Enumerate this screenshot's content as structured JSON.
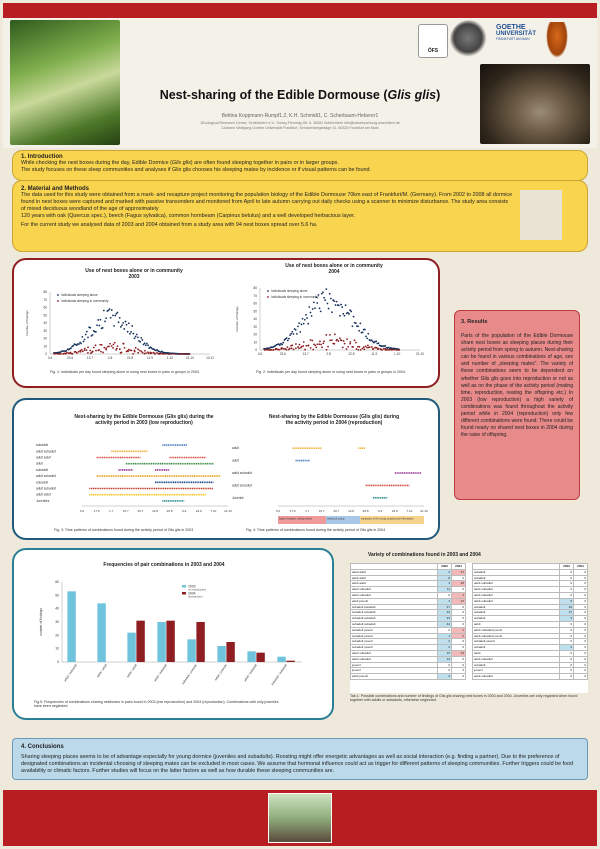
{
  "title": {
    "prefix": "Nest-sharing of the Edible Dormouse (",
    "species": "Glis glis",
    "suffix": ")"
  },
  "authors": "Bettina Koppmann-Rumpf1,2, K.H. Schmidt1, C. Scherbaum-Heberer1",
  "affiliations": [
    "1Ecological Research Center, Schlüchtern e.V., Georg-Flemmig-Str. 5, 36381 Schlüchtern info@oekoforschung-sluechtern.de",
    "2Johann Wolfgang Goethe Universität Frankfurt, Senckenberganlage 31, 60325 Frankfurt am Main"
  ],
  "logos": {
    "ofs": "ÖFS",
    "uni1": "GOETHE",
    "uni2": "UNIVERSITÄT",
    "uni3": "FRANKFURT AM MAIN"
  },
  "introduction": {
    "heading": "1. Introduction",
    "p1a": "While checking the nest boxes during the day, Edible Dormice (",
    "p1i": "Glis glis",
    "p1b": ") are often found sleeping together in pairs or in larger groups.",
    "p2": "The study focuses on these sleep communities  and analyses if Glis glis chooses his sleeping mates by incidence or if visual patterns can be found."
  },
  "methods": {
    "heading": "2. Material and Methods",
    "p1": "The data used for this study were obtained from a mark- and recapture project monitoring the population biology of the Edible Dormouse 70km east of Frankfurt/M. (Germany).  From 2002 to 2008 all dormice found in nest boxes were captured and marked with passive transonders and monitored from April to late autumn carrying out daily  checks using a scanner to minimize  disturbance. The study area consists of mixed deciduous woodland of the age of approximately",
    "p2": " 120 years with oak (Quercus spec.), beech (Fagus sylvatica), common hornbeam (Carpinus betulus) and a well developed herbacious layer.",
    "p3": "For the current study  we analysed data of 2003 and 2004 obtained from a study area with 94 nest boxes spread over 5.6 ha."
  },
  "results": {
    "heading": "3. Results",
    "text": "Parts of the population of the Edible Dormouse share nest boxes as sleeping places during their activity period from spring to autumn. Nest-sharing can be found in various combinations of age, sex and number of „sleeping mates\". The variety of these combinations seem to be dependent on whether Glis glis goes into reproduction or not as well as on the phase of the activity period (mating time, reproduction, rearing the offspring etc.) In 2003 (low reproduction) a high variety of combinations was found throughout the activity period while in 2004 (reproduction) only few different combinations were found.  There could be found nearly no shared nest boxes in 2004 during the raise of offspring."
  },
  "conclusions": {
    "heading": "4. Conclusions",
    "text": "Sharing sleeping places seems to be of advantage especially for young dormice (juveniles and subadults). Roosting might offer energetic advantages as well as social interaction (e.g. finding a partner). Due to the preference of designated combinations an incidental choosing of sleeping mates can be excluded in most cases. We assume that hormonal influence could act as trigger for different patterns of sleeping communities. Further triggers could be food availability or climatic factors. Further studies will focus on the latter factors as well as how durable these sleeping communities are."
  },
  "fig1": {
    "title_a": "Use of nest boxes alone or in community",
    "title_b": "2003",
    "legend": [
      "Individuals sleeping alone",
      "Individuals sleeping in community"
    ],
    "yticks": [
      "80",
      "70",
      "60",
      "50",
      "40",
      "30",
      "20",
      "10",
      "0"
    ],
    "ylabel": "Number of findings",
    "xticks": [
      "3.6",
      "23.6",
      "13.7",
      "2.8",
      "22.8",
      "11.9",
      "1.10",
      "21.10",
      "10.11"
    ],
    "caption": "Fig. 1: Individuals per day found sleeping alone or using nest boxes in pairs or groups in 2003."
  },
  "fig2": {
    "title_a": "Use of nest boxes alone or in community",
    "title_b": "2004",
    "legend": [
      "Individuals sleeping alone",
      "Individuals sleeping in community"
    ],
    "yticks": [
      "80",
      "70",
      "60",
      "50",
      "40",
      "30",
      "20",
      "10",
      "0"
    ],
    "ylabel": "Number of findings",
    "xticks": [
      "3.6",
      "23.6",
      "13.7",
      "2.8",
      "22.8",
      "11.9",
      "1.10",
      "21.10"
    ],
    "caption": "Fig. 2: Individuals per day found sleeping alone or using nest boxes in pairs or groups in 2004."
  },
  "fig3": {
    "title1": "Nest-sharing by the Edible Dormouse (Glis glis) during the",
    "title2": "activity period in 2003 (low reproduction)",
    "labels": [
      "subadult",
      "adult subadult",
      "adult adult",
      "adult",
      "subadult",
      "adult subadult",
      "subadult",
      "adult subadult",
      "adult adult",
      "Juveniles"
    ],
    "xticks": [
      "3.6",
      "17.6",
      "1.7",
      "15.7",
      "29.7",
      "12.8",
      "26.8",
      "9.9",
      "23.9",
      "7.10",
      "21.10"
    ],
    "caption": "Fig. 3: Time patterns of combinations found during the activity period of Glis glis in 2003"
  },
  "fig4": {
    "title1": "Nest-sharing by the Edible Dormouse (Glis glis) during",
    "title2": "the activity period in 2004 (reproduction)",
    "labels": [
      "adult",
      "adult",
      "adult subadult",
      "adult subadult",
      "Juvenile"
    ],
    "xticks": [
      "3.6",
      "17.6",
      "1.7",
      "15.7",
      "29.7",
      "12.8",
      "26.8",
      "9.9",
      "23.9",
      "7.10",
      "21.10"
    ],
    "phases": [
      "begin of season, mating period",
      "rearing of young",
      "separation of the young, preparing for hibernation"
    ],
    "caption": "Fig. 4: Time patterns of combinations found during the activity period of Glis glis in 2004"
  },
  "fig5": {
    "title": "Frequencies of  pair combinations in 2003 and 2004",
    "legend": [
      "2003",
      "2004"
    ],
    "legend_sub": [
      "no reproduction",
      "reproduction"
    ],
    "ylabel": "number of findings",
    "yticks": [
      "60",
      "50",
      "40",
      "30",
      "20",
      "10",
      "0"
    ],
    "categories": [
      "adult / subadult",
      "adult / adult",
      "adult / adult",
      "adult / subadult",
      "subadult / juvenile",
      "adult / juvenile",
      "adult / subadult",
      "subadult / subadult"
    ],
    "caption": "Fig.5: Frequencies of combinations sharing nestboxes in pairs found in 2003 (low reproduction) and 2004 (reproduction). Combinations with only juveniles have been neglected."
  },
  "table": {
    "title": "Variety of combinations found in 2003 and 2004",
    "head": [
      "",
      "2003",
      "2004"
    ],
    "left": [
      [
        "adult adult",
        "2",
        "37"
      ],
      [
        "adult adult",
        "8",
        "0"
      ],
      [
        "adult adult",
        "3",
        "16"
      ],
      [
        "adult subadult",
        "11",
        "0"
      ],
      [
        "adult subadult",
        "0",
        "1"
      ],
      [
        "adult juvenil",
        "3",
        "27"
      ],
      [
        "subadult subadult",
        "37",
        "0"
      ],
      [
        "subadult subadult",
        "22",
        "0"
      ],
      [
        "subadult subadult",
        "23",
        "0"
      ],
      [
        "subadult subadult",
        "44",
        "0"
      ],
      [
        "subadult juvenil",
        "0",
        "1"
      ],
      [
        "subadult juvenil",
        "1",
        "2"
      ],
      [
        "subadult juvenil",
        "2",
        "0"
      ],
      [
        "subadult juvenil",
        "2",
        "0"
      ],
      [
        "adult subadult",
        "16",
        "13"
      ],
      [
        "adult subadult",
        "13",
        "0"
      ],
      [
        "juvenil",
        "0",
        "0"
      ],
      [
        "juvenil",
        "0",
        "0"
      ],
      [
        "adult juvenil",
        "2",
        "0"
      ]
    ],
    "right": [
      [
        "subadult",
        "0",
        "0"
      ],
      [
        "subadult",
        "0",
        "0"
      ],
      [
        "adult subadult",
        "0",
        "0"
      ],
      [
        "adult subadult",
        "0",
        "0"
      ],
      [
        "adult subadult",
        "0",
        "0"
      ],
      [
        "adult subadult",
        "6",
        "0"
      ],
      [
        "subadult",
        "10",
        "0"
      ],
      [
        "subadult",
        "17",
        "0"
      ],
      [
        "subadult",
        "4",
        "0"
      ],
      [
        "adult",
        "0",
        "0"
      ],
      [
        "adult subadult juvenil",
        "0",
        "0"
      ],
      [
        "adult subadult juvenil",
        "0",
        "0"
      ],
      [
        "subadult juvenil",
        "0",
        "0"
      ],
      [
        "subadult",
        "2",
        "0"
      ],
      [
        "adult",
        "0",
        "0"
      ],
      [
        "adult subadult",
        "0",
        "0"
      ],
      [
        "subadult",
        "0",
        "0"
      ],
      [
        "juvenil",
        "0",
        "0"
      ],
      [
        "adult subadult",
        "0",
        "0"
      ]
    ],
    "caption": "Tab.1: Possible combinations and number of findings of Glis glis sharing nest boxes in 2003 and 2004. Juveniles are only regarded when found together with adults or subadults, otherwise neglected."
  },
  "colors": {
    "red": "#b81d22",
    "yellow": "#f9d44f",
    "results": "#e88a8a",
    "blue": "#bcd9ea",
    "s2003": "#6fc3dc",
    "s2004": "#8e1e22"
  },
  "chart_data": [
    {
      "type": "bar",
      "title": "Frequencies of  pair combinations in 2003 and 2004",
      "ylabel": "number of findings",
      "ylim": [
        0,
        60
      ],
      "categories": [
        "adult / subadult",
        "adult / adult",
        "adult / adult",
        "adult / subadult",
        "subadult / juvenile",
        "adult / juvenile",
        "adult / subadult",
        "subadult / subadult"
      ],
      "series": [
        {
          "name": "2003",
          "values": [
            53,
            44,
            22,
            30,
            17,
            12,
            8,
            4
          ]
        },
        {
          "name": "2004",
          "values": [
            0,
            0,
            31,
            31,
            30,
            15,
            7,
            1
          ]
        }
      ]
    }
  ]
}
